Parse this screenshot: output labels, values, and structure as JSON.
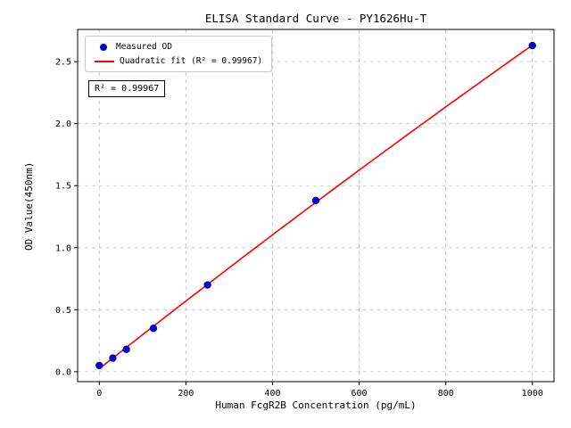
{
  "chart_data": {
    "type": "scatter",
    "title": "ELISA Standard Curve - PY1626Hu-T",
    "xlabel": "Human FcgR2B Concentration (pg/mL)",
    "ylabel": "OD Value(450nm)",
    "xlim": [
      -50,
      1050
    ],
    "ylim": [
      -0.08,
      2.76
    ],
    "xticks": [
      0,
      200,
      400,
      600,
      800,
      1000
    ],
    "xtick_labels": [
      "0",
      "200",
      "400",
      "600",
      "800",
      "1000"
    ],
    "yticks": [
      0,
      0.5,
      1.0,
      1.5,
      2.0,
      2.5
    ],
    "ytick_labels": [
      "0.0",
      "0.5",
      "1.0",
      "1.5",
      "2.0",
      "2.5"
    ],
    "grid": true,
    "legend_position": "upper-left",
    "series": [
      {
        "name": "Measured OD",
        "type": "scatter",
        "color": "#0000cd",
        "x": [
          0,
          31.25,
          62.5,
          125,
          250,
          500,
          1000
        ],
        "y": [
          0.05,
          0.11,
          0.18,
          0.35,
          0.7,
          1.38,
          2.63
        ]
      },
      {
        "name": "Quadratic fit (R² = 0.99967)",
        "type": "quadratic-fit",
        "color": "#ff0000"
      }
    ],
    "legend": [
      {
        "label": "Measured OD",
        "marker": "dot",
        "color": "#0000cd"
      },
      {
        "label": "Quadratic fit (R² = 0.99967)",
        "marker": "line",
        "color": "#ff0000"
      }
    ],
    "annotation": "R² = 0.99967",
    "r_squared": 0.99967
  },
  "colors": {
    "grid": "#bfbfbf",
    "axis": "#000000",
    "background": "#ffffff"
  }
}
